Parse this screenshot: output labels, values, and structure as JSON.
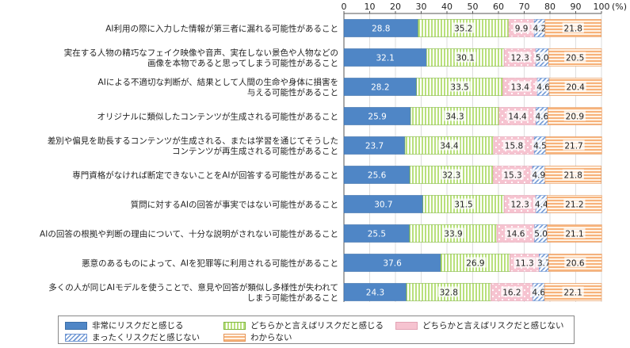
{
  "chart_data": {
    "type": "bar",
    "orientation": "horizontal",
    "stacked": true,
    "unit": "(%)",
    "xlim": [
      0,
      100
    ],
    "xticks": [
      0,
      10,
      20,
      30,
      40,
      50,
      60,
      70,
      80,
      90,
      100
    ],
    "xtick_labels": [
      "0",
      "10",
      "20",
      "30",
      "40",
      "50",
      "60",
      "70",
      "80",
      "90",
      "100"
    ],
    "categories": [
      [
        "AI利用の際に入力した情報が第三者に漏れる可能性があること"
      ],
      [
        "実在する人物の精巧なフェイク映像や音声、実在しない景色や人物などの",
        "画像を本物であると思ってしまう可能性があること"
      ],
      [
        "AIによる不適切な判断が、結果として人間の生命や身体に損害を",
        "与える可能性があること"
      ],
      [
        "オリジナルに類似したコンテンツが生成される可能性があること"
      ],
      [
        "差別や偏見を助長するコンテンツが生成される、または学習を通じてそうした",
        "コンテンツが再生成される可能性があること"
      ],
      [
        "専門資格がなければ断定できないことをAIが回答する可能性があること"
      ],
      [
        "質問に対するAIの回答が事実ではない可能性があること"
      ],
      [
        "AIの回答の根拠や判断の理由について、十分な説明がされない可能性があること"
      ],
      [
        "悪意のあるものによって、AIを犯罪等に利用される可能性があること"
      ],
      [
        "多くの人が同じAIモデルを使うことで、意見や回答が類似し多様性が失われて",
        "しまう可能性があること"
      ]
    ],
    "series": [
      {
        "name": "非常にリスクだと感じる",
        "values": [
          28.8,
          32.1,
          28.2,
          25.9,
          23.7,
          25.6,
          30.7,
          25.5,
          37.6,
          24.3
        ]
      },
      {
        "name": "どちらかと言えばリスクだと感じる",
        "values": [
          35.2,
          30.1,
          33.5,
          34.3,
          34.4,
          32.3,
          31.5,
          33.9,
          26.9,
          32.8
        ]
      },
      {
        "name": "どちらかと言えばリスクだと感じない",
        "values": [
          9.9,
          12.3,
          13.4,
          14.4,
          15.8,
          15.3,
          12.3,
          14.6,
          11.3,
          16.2
        ]
      },
      {
        "name": "まったくリスクだと感じない",
        "values": [
          4.2,
          5.0,
          4.6,
          4.6,
          4.5,
          4.9,
          4.4,
          5.0,
          3.7,
          4.6
        ]
      },
      {
        "name": "わからない",
        "values": [
          21.8,
          20.5,
          20.4,
          20.9,
          21.7,
          21.8,
          21.2,
          21.1,
          20.6,
          22.1
        ]
      }
    ],
    "colors": [
      "#4f86c6",
      "#b9e07c",
      "#f6c3d0",
      "#6f97d4",
      "#f7b27a"
    ],
    "legend_position": "bottom"
  }
}
